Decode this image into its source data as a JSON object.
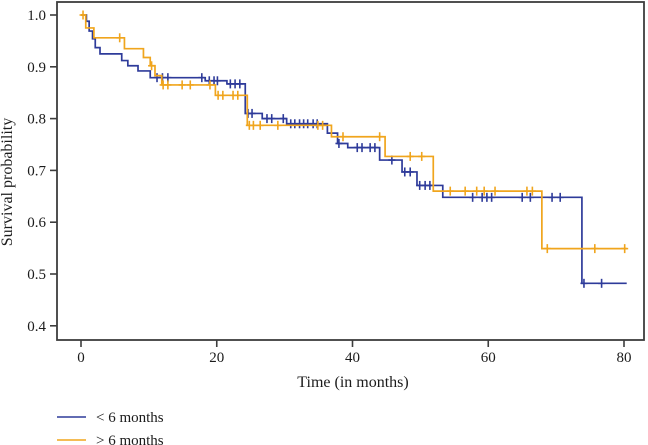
{
  "chart_data": {
    "type": "line",
    "subtype": "kaplan-meier-step-survival",
    "title": "",
    "xlabel": "Time (in months)",
    "ylabel": "Survival probability",
    "xlim": [
      0,
      80
    ],
    "ylim": [
      0.4,
      1.0
    ],
    "xticks": [
      0,
      20,
      40,
      60,
      80
    ],
    "xtick_labels": [
      "0",
      "20",
      "40",
      "60",
      "80"
    ],
    "yticks": [
      1.0,
      0.9,
      0.8,
      0.7,
      0.6,
      0.5,
      0.4
    ],
    "ytick_labels": [
      "1.0",
      "0.9",
      "0.8",
      "0.7",
      "0.6",
      "0.5",
      "0.4"
    ],
    "grid": false,
    "legend_position": "bottom-left",
    "axis_color": "#3d3d3d",
    "series": [
      {
        "name": "< 6 months",
        "color": "#2e3b9a",
        "end_time": 80.4,
        "steps": [
          [
            0,
            1.0
          ],
          [
            0.8,
            0.988
          ],
          [
            1.2,
            0.969
          ],
          [
            1.7,
            0.954
          ],
          [
            2.1,
            0.937
          ],
          [
            2.8,
            0.925
          ],
          [
            6.0,
            0.912
          ],
          [
            6.9,
            0.902
          ],
          [
            8.4,
            0.892
          ],
          [
            10.2,
            0.879
          ],
          [
            18.3,
            0.873
          ],
          [
            21.5,
            0.867
          ],
          [
            24.2,
            0.81
          ],
          [
            26.7,
            0.8
          ],
          [
            30.3,
            0.79
          ],
          [
            36.3,
            0.772
          ],
          [
            37.8,
            0.752
          ],
          [
            39.3,
            0.744
          ],
          [
            44.0,
            0.72
          ],
          [
            47.3,
            0.697
          ],
          [
            49.5,
            0.671
          ],
          [
            53.3,
            0.648
          ],
          [
            73.8,
            0.482
          ]
        ],
        "censors": [
          [
            11.2,
            0.879
          ],
          [
            12.0,
            0.879
          ],
          [
            12.8,
            0.879
          ],
          [
            17.8,
            0.879
          ],
          [
            18.9,
            0.873
          ],
          [
            19.6,
            0.873
          ],
          [
            20.1,
            0.873
          ],
          [
            22.0,
            0.867
          ],
          [
            22.7,
            0.867
          ],
          [
            23.4,
            0.867
          ],
          [
            24.6,
            0.81
          ],
          [
            25.2,
            0.81
          ],
          [
            27.4,
            0.8
          ],
          [
            28.1,
            0.8
          ],
          [
            29.8,
            0.8
          ],
          [
            30.9,
            0.79
          ],
          [
            31.5,
            0.79
          ],
          [
            32.2,
            0.79
          ],
          [
            32.8,
            0.79
          ],
          [
            33.4,
            0.79
          ],
          [
            34.2,
            0.79
          ],
          [
            34.8,
            0.79
          ],
          [
            38.0,
            0.752
          ],
          [
            40.7,
            0.744
          ],
          [
            41.4,
            0.744
          ],
          [
            42.6,
            0.744
          ],
          [
            43.3,
            0.744
          ],
          [
            45.8,
            0.72
          ],
          [
            47.7,
            0.697
          ],
          [
            48.5,
            0.697
          ],
          [
            49.9,
            0.671
          ],
          [
            50.7,
            0.671
          ],
          [
            51.4,
            0.671
          ],
          [
            57.7,
            0.648
          ],
          [
            59.1,
            0.648
          ],
          [
            59.8,
            0.648
          ],
          [
            60.5,
            0.648
          ],
          [
            65.0,
            0.648
          ],
          [
            66.2,
            0.648
          ],
          [
            69.4,
            0.648
          ],
          [
            70.6,
            0.648
          ],
          [
            74.1,
            0.482
          ],
          [
            76.7,
            0.482
          ]
        ]
      },
      {
        "name": "> 6 months",
        "color": "#f0a51d",
        "end_time": 80.4,
        "steps": [
          [
            0,
            1.0
          ],
          [
            0.7,
            0.975
          ],
          [
            1.9,
            0.956
          ],
          [
            6.4,
            0.935
          ],
          [
            9.2,
            0.918
          ],
          [
            10.2,
            0.902
          ],
          [
            10.9,
            0.883
          ],
          [
            11.9,
            0.865
          ],
          [
            19.8,
            0.845
          ],
          [
            24.5,
            0.787
          ],
          [
            36.9,
            0.765
          ],
          [
            44.8,
            0.727
          ],
          [
            51.9,
            0.66
          ],
          [
            67.9,
            0.549
          ]
        ],
        "censors": [
          [
            0.3,
            1.0
          ],
          [
            5.7,
            0.956
          ],
          [
            10.4,
            0.902
          ],
          [
            12.1,
            0.865
          ],
          [
            12.8,
            0.865
          ],
          [
            14.9,
            0.865
          ],
          [
            16.1,
            0.865
          ],
          [
            19.0,
            0.865
          ],
          [
            20.2,
            0.845
          ],
          [
            20.9,
            0.845
          ],
          [
            22.4,
            0.845
          ],
          [
            23.1,
            0.845
          ],
          [
            24.8,
            0.787
          ],
          [
            25.4,
            0.787
          ],
          [
            26.4,
            0.787
          ],
          [
            29.0,
            0.787
          ],
          [
            34.9,
            0.787
          ],
          [
            35.6,
            0.787
          ],
          [
            38.6,
            0.765
          ],
          [
            44.0,
            0.765
          ],
          [
            48.5,
            0.727
          ],
          [
            50.2,
            0.727
          ],
          [
            54.4,
            0.66
          ],
          [
            56.6,
            0.66
          ],
          [
            58.3,
            0.66
          ],
          [
            59.4,
            0.66
          ],
          [
            61.0,
            0.66
          ],
          [
            65.7,
            0.66
          ],
          [
            66.5,
            0.66
          ],
          [
            68.7,
            0.549
          ],
          [
            75.7,
            0.549
          ],
          [
            80.1,
            0.549
          ]
        ]
      }
    ]
  }
}
